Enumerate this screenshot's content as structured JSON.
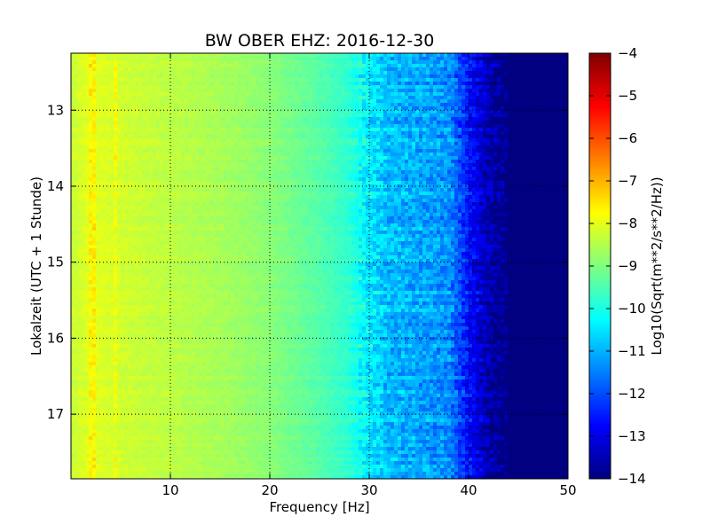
{
  "chart_data": {
    "type": "heatmap",
    "title": "BW OBER EHZ: 2016-12-30",
    "xlabel": "Frequency [Hz]",
    "ylabel": "Lokalzeit (UTC + 1 Stunde)",
    "xlim": [
      0,
      50
    ],
    "ylim": [
      12.25,
      17.85
    ],
    "y_inverted": true,
    "xticks": [
      10,
      20,
      30,
      40,
      50
    ],
    "yticks": [
      13,
      14,
      15,
      16,
      17
    ],
    "grid": true,
    "colormap": "jet",
    "colorbar": {
      "label": "Log10(Sqrt(m**2/s**2/Hz))",
      "min": -14,
      "max": -4,
      "ticks": [
        -4,
        -5,
        -6,
        -7,
        -8,
        -9,
        -10,
        -11,
        -12,
        -13,
        -14
      ]
    },
    "spectrum_profile": {
      "frequency_hz": [
        0,
        2,
        5,
        10,
        15,
        20,
        25,
        28,
        30,
        32,
        35,
        38,
        40,
        42,
        44,
        50
      ],
      "log10_amplitude": [
        -8.3,
        -8.0,
        -8.2,
        -8.4,
        -8.6,
        -8.9,
        -9.4,
        -9.8,
        -10.4,
        -10.9,
        -11.1,
        -11.3,
        -12.6,
        -13.5,
        -14.0,
        -14.0
      ]
    }
  }
}
